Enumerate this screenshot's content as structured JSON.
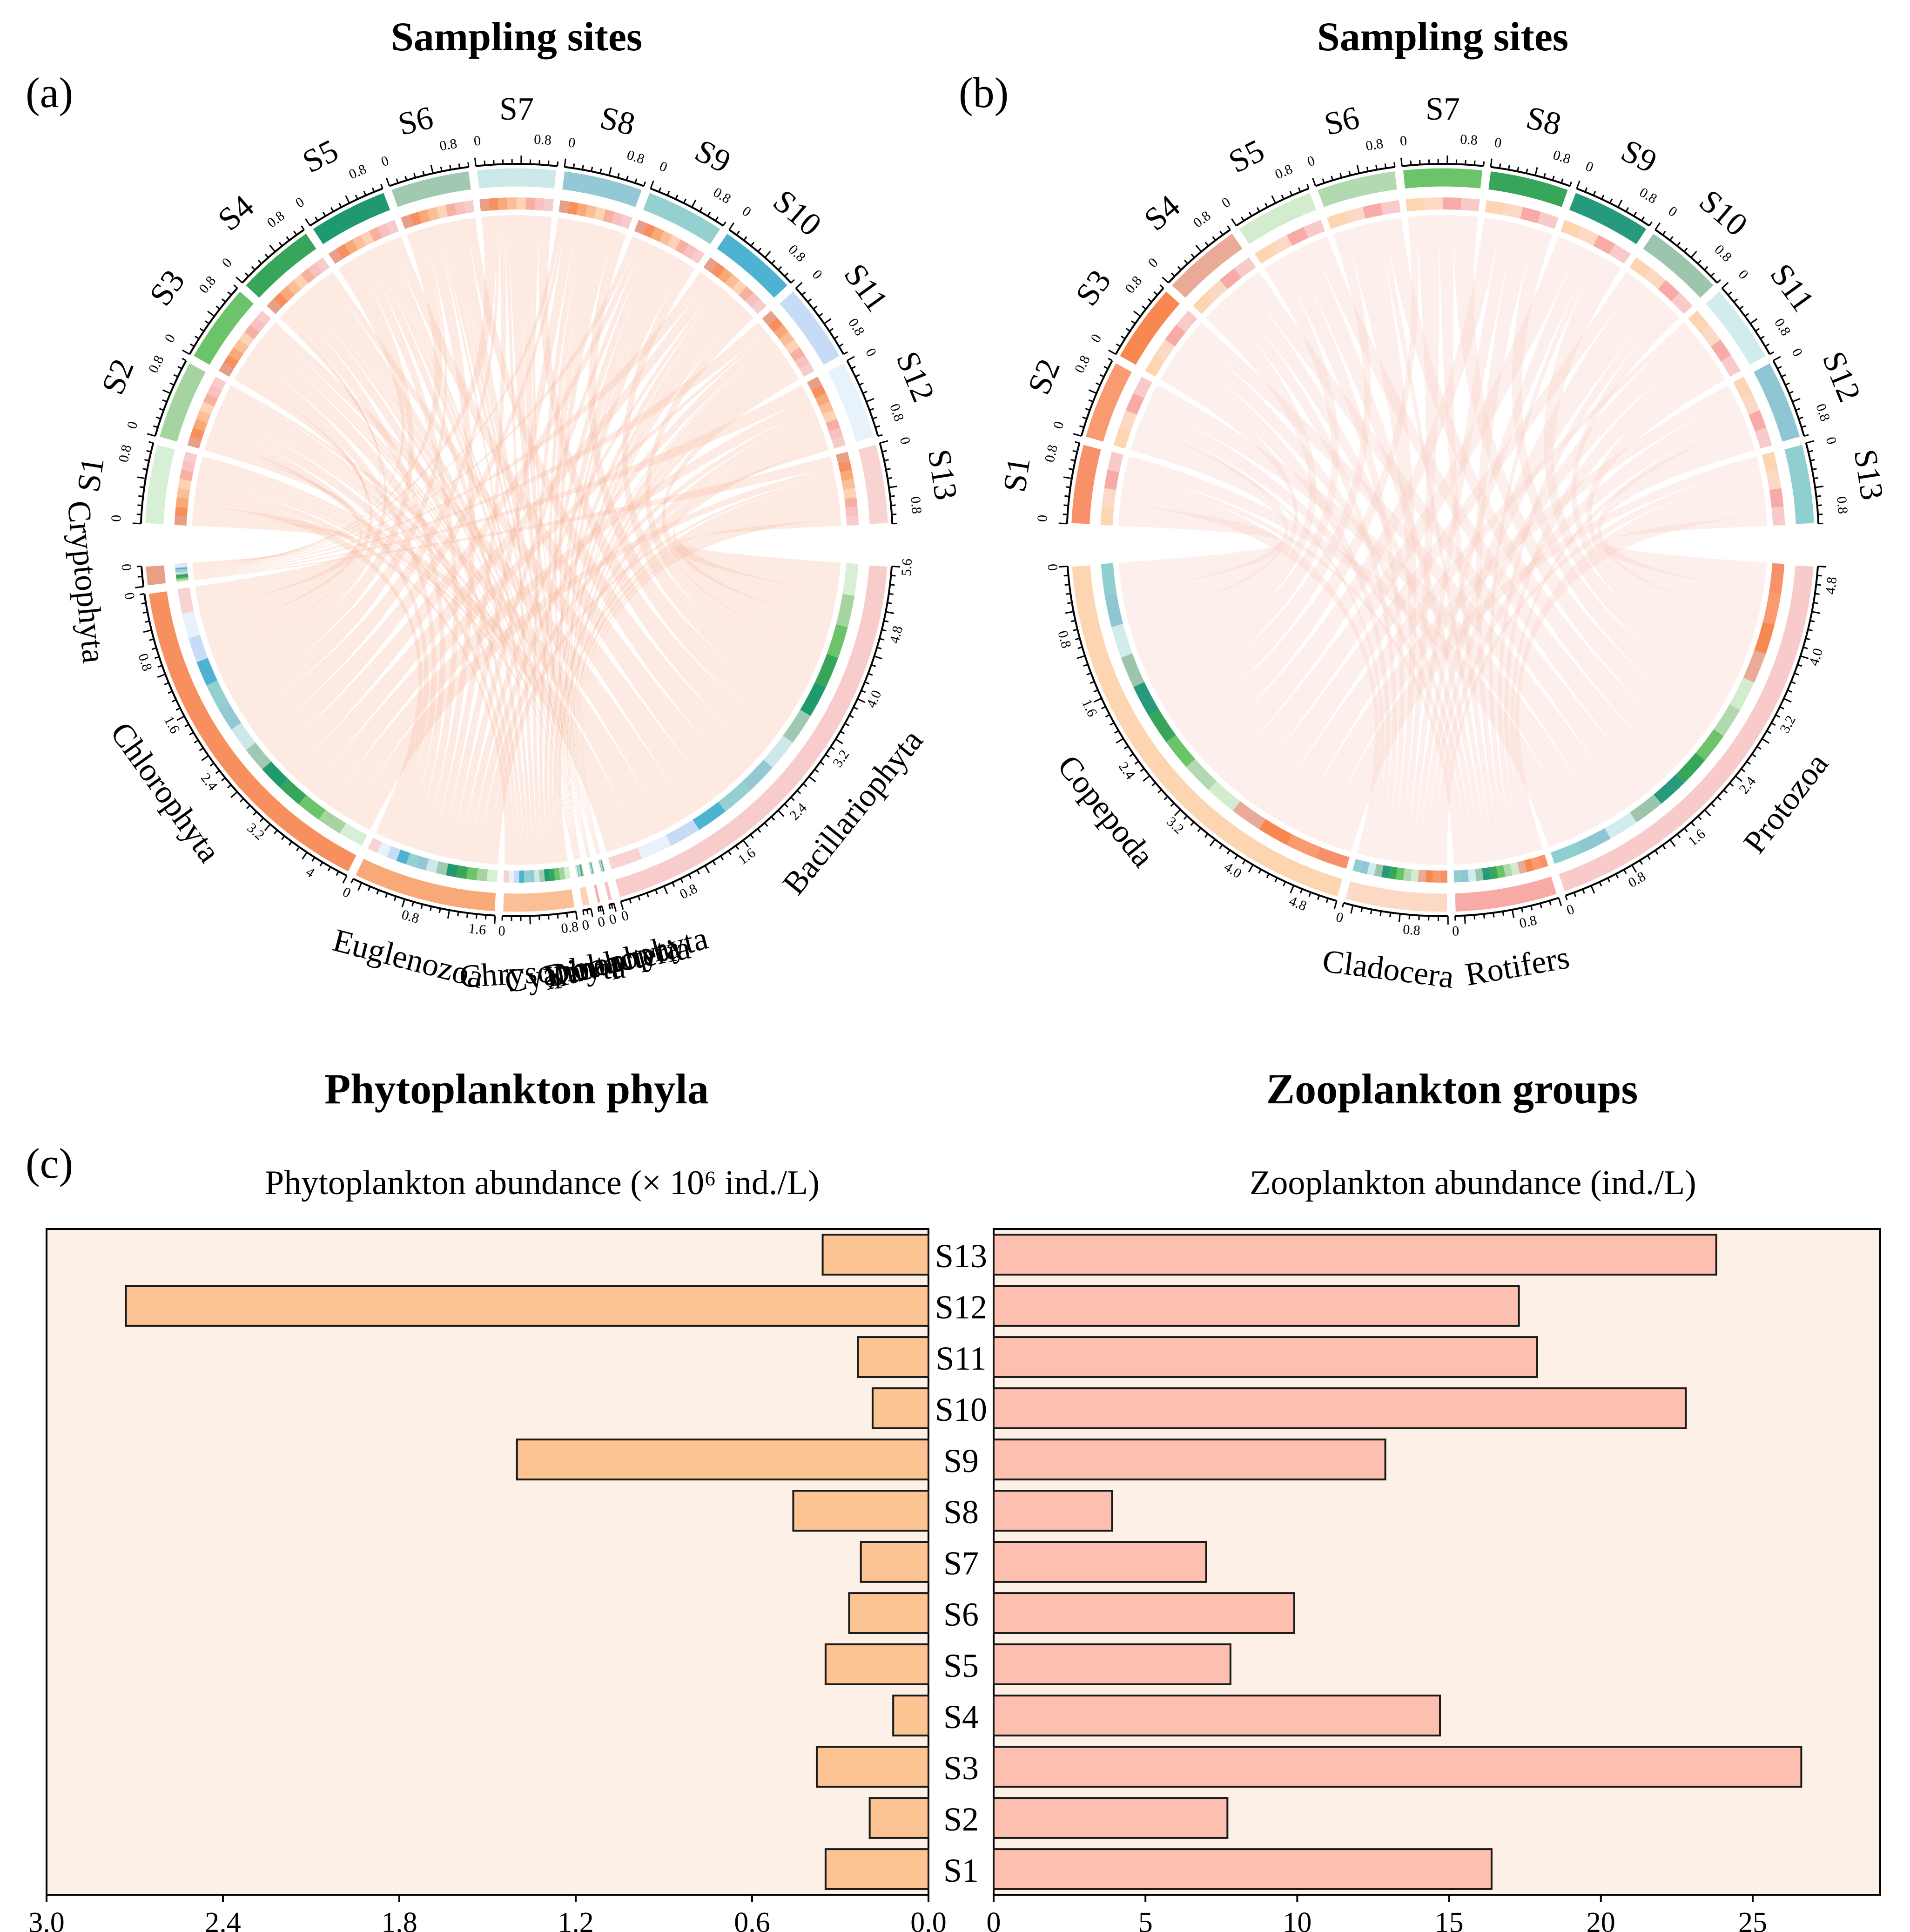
{
  "figure": {
    "panel_a_label": "(a)",
    "panel_b_label": "(b)",
    "panel_c_label": "(c)"
  },
  "colors": {
    "panel_c_background": "#fdf0e6",
    "phyto_bar": "#fcc393",
    "zoo_bar": "#fcbfb0",
    "bar_edge": "#1a1a1a",
    "chord_a": "#f9b89a",
    "chord_b": "#f9c9b9"
  },
  "chart_data": [
    {
      "type": "chord",
      "panel": "(a)",
      "top_title": "Sampling sites",
      "bottom_title": "Phytoplankton phyla",
      "site_sectors": [
        {
          "name": "S1",
          "color": "#d7efd4",
          "total": 1.0
        },
        {
          "name": "S2",
          "color": "#a6d4a0",
          "total": 1.0
        },
        {
          "name": "S3",
          "color": "#6cc46a",
          "total": 1.0
        },
        {
          "name": "S4",
          "color": "#37a55a",
          "total": 1.0
        },
        {
          "name": "S5",
          "color": "#1f9a6f",
          "total": 1.0
        },
        {
          "name": "S6",
          "color": "#9fc9b0",
          "total": 1.0
        },
        {
          "name": "S7",
          "color": "#cde8e8",
          "total": 1.0
        },
        {
          "name": "S8",
          "color": "#94c8d4",
          "total": 1.0
        },
        {
          "name": "S9",
          "color": "#95d0d0",
          "total": 1.0
        },
        {
          "name": "S10",
          "color": "#4eb3d3",
          "total": 1.0
        },
        {
          "name": "S11",
          "color": "#c6dbf5",
          "total": 1.0
        },
        {
          "name": "S12",
          "color": "#e8f2fa",
          "total": 1.0
        },
        {
          "name": "S13",
          "color": "#f9d2d2",
          "total": 1.0
        }
      ],
      "group_sectors": [
        {
          "name": "Cryptophyta",
          "color": "#e89f88",
          "total": 0.25
        },
        {
          "name": "Chlorophyta",
          "color": "#f7905e",
          "total": 4.4
        },
        {
          "name": "Euglenozoa",
          "color": "#f9a878",
          "total": 1.8
        },
        {
          "name": "Chrysophyta",
          "color": "#fbbf98",
          "total": 0.9
        },
        {
          "name": "Cyanobacteria",
          "color": "#fdd2b5",
          "total": 0.1
        },
        {
          "name": "Dinophyta",
          "color": "#f7b0a0",
          "total": 0.05
        },
        {
          "name": "Xanthophyta",
          "color": "#f8c0c0",
          "total": 0.06
        },
        {
          "name": "Bacillariophyta",
          "color": "#f9cccc",
          "total": 5.6
        }
      ],
      "site_ticks": [
        "0",
        "0.8"
      ],
      "group_tick_labels": [
        [
          "0"
        ],
        [
          "0",
          "0.8",
          "1.6",
          "2.4",
          "3.2",
          "4"
        ],
        [
          "0",
          "0.8",
          "1.6"
        ],
        [
          "0",
          "0.8"
        ],
        [
          "0"
        ],
        [
          "0"
        ],
        [
          "0"
        ],
        [
          "0",
          "0.8",
          "1.6",
          "2.4",
          "3.2",
          "4.0",
          "4.8",
          "5.6"
        ]
      ]
    },
    {
      "type": "chord",
      "panel": "(b)",
      "top_title": "Sampling sites",
      "bottom_title": "Zooplankton groups",
      "site_sectors": [
        {
          "name": "S1",
          "color": "#f8906a",
          "total": 1.0
        },
        {
          "name": "S2",
          "color": "#f99a70",
          "total": 1.0
        },
        {
          "name": "S3",
          "color": "#f8884f",
          "total": 1.0
        },
        {
          "name": "S4",
          "color": "#e9aa98",
          "total": 1.0
        },
        {
          "name": "S5",
          "color": "#d3ecce",
          "total": 1.0
        },
        {
          "name": "S6",
          "color": "#b2d9b0",
          "total": 1.0
        },
        {
          "name": "S7",
          "color": "#6cc46a",
          "total": 1.0
        },
        {
          "name": "S8",
          "color": "#37a55a",
          "total": 1.0
        },
        {
          "name": "S9",
          "color": "#27997c",
          "total": 1.0
        },
        {
          "name": "S10",
          "color": "#9dc5ae",
          "total": 1.0
        },
        {
          "name": "S11",
          "color": "#d0ecec",
          "total": 1.0
        },
        {
          "name": "S12",
          "color": "#8fc6d3",
          "total": 1.0
        },
        {
          "name": "S13",
          "color": "#8fcfcf",
          "total": 1.0
        }
      ],
      "group_sectors": [
        {
          "name": "Copepoda",
          "color": "#fdd5b0",
          "total": 5.2
        },
        {
          "name": "Cladocera",
          "color": "#fcd9c5",
          "total": 1.2
        },
        {
          "name": "Rotifers",
          "color": "#f8aaa6",
          "total": 1.2
        },
        {
          "name": "Protozoa",
          "color": "#f9caca",
          "total": 5.0
        }
      ],
      "site_ticks": [
        "0",
        "0.8"
      ],
      "group_tick_labels": [
        [
          "0",
          "0.8",
          "1.6",
          "2.4",
          "3.2",
          "4.0",
          "4.8"
        ],
        [
          "0",
          "0.8"
        ],
        [
          "0",
          "0.8"
        ],
        [
          "0",
          "0.8",
          "1.6",
          "2.4",
          "3.2",
          "4.0",
          "4.8"
        ]
      ]
    },
    {
      "type": "bar",
      "orientation": "horizontal-mirrored",
      "panel": "(c)",
      "categories": [
        "S1",
        "S2",
        "S3",
        "S4",
        "S5",
        "S6",
        "S7",
        "S8",
        "S9",
        "S10",
        "S11",
        "S12",
        "S13"
      ],
      "left": {
        "title": "Phytoplankton abundance (× 10⁶ ind./L)",
        "values": [
          0.35,
          0.2,
          0.38,
          0.12,
          0.35,
          0.27,
          0.23,
          0.46,
          1.4,
          0.19,
          0.24,
          2.73,
          0.36
        ],
        "xlim": [
          3.0,
          0.0
        ],
        "ticks": [
          "3.0",
          "2.4",
          "1.8",
          "1.2",
          "0.6",
          "0.0"
        ]
      },
      "right": {
        "title": "Zooplankton abundance (ind./L)",
        "values": [
          16.4,
          7.7,
          26.6,
          14.7,
          7.8,
          9.9,
          7.0,
          3.9,
          12.9,
          22.8,
          17.9,
          17.3,
          23.8
        ],
        "xlim": [
          0,
          29.2
        ],
        "ticks": [
          "0",
          "5",
          "10",
          "15",
          "20",
          "25"
        ]
      }
    }
  ]
}
